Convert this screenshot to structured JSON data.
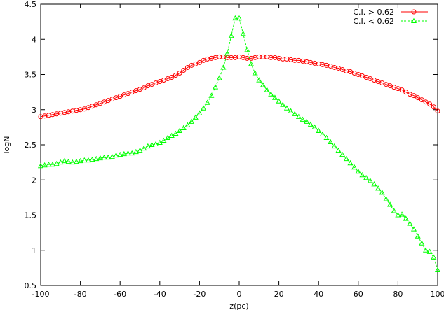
{
  "chart_data": {
    "type": "line",
    "xlabel": "z(pc)",
    "ylabel": "logN",
    "xlim": [
      -100,
      100
    ],
    "ylim": [
      0.5,
      4.5
    ],
    "xticks": [
      -100,
      -80,
      -60,
      -40,
      -20,
      0,
      20,
      40,
      60,
      80,
      100
    ],
    "yticks": [
      0.5,
      1,
      1.5,
      2,
      2.5,
      3,
      3.5,
      4,
      4.5
    ],
    "xtick_labels": [
      "-100",
      "-80",
      "-60",
      "-40",
      "-20",
      "0",
      "20",
      "40",
      "60",
      "80",
      "100"
    ],
    "ytick_labels": [
      "0.5",
      "1",
      "1.5",
      "2",
      "2.5",
      "3",
      "3.5",
      "4",
      "4.5"
    ],
    "grid": false,
    "legend": "top-right",
    "x": [
      -100,
      -98,
      -96,
      -94,
      -92,
      -90,
      -88,
      -86,
      -84,
      -82,
      -80,
      -78,
      -76,
      -74,
      -72,
      -70,
      -68,
      -66,
      -64,
      -62,
      -60,
      -58,
      -56,
      -54,
      -52,
      -50,
      -48,
      -46,
      -44,
      -42,
      -40,
      -38,
      -36,
      -34,
      -32,
      -30,
      -28,
      -26,
      -24,
      -22,
      -20,
      -18,
      -16,
      -14,
      -12,
      -10,
      -8,
      -6,
      -4,
      -2,
      0,
      2,
      4,
      6,
      8,
      10,
      12,
      14,
      16,
      18,
      20,
      22,
      24,
      26,
      28,
      30,
      32,
      34,
      36,
      38,
      40,
      42,
      44,
      46,
      48,
      50,
      52,
      54,
      56,
      58,
      60,
      62,
      64,
      66,
      68,
      70,
      72,
      74,
      76,
      78,
      80,
      82,
      84,
      86,
      88,
      90,
      92,
      94,
      96,
      98,
      100
    ],
    "series": [
      {
        "name": "C.I. > 0.62",
        "color": "#ff0000",
        "marker": "circle",
        "values": [
          2.9,
          2.91,
          2.92,
          2.93,
          2.94,
          2.95,
          2.96,
          2.97,
          2.98,
          2.99,
          3.0,
          3.01,
          3.03,
          3.05,
          3.07,
          3.09,
          3.11,
          3.13,
          3.15,
          3.17,
          3.19,
          3.21,
          3.23,
          3.25,
          3.27,
          3.29,
          3.31,
          3.34,
          3.36,
          3.38,
          3.4,
          3.42,
          3.44,
          3.46,
          3.49,
          3.52,
          3.56,
          3.6,
          3.63,
          3.65,
          3.67,
          3.7,
          3.72,
          3.73,
          3.74,
          3.75,
          3.75,
          3.74,
          3.74,
          3.74,
          3.75,
          3.74,
          3.73,
          3.73,
          3.74,
          3.75,
          3.75,
          3.75,
          3.74,
          3.74,
          3.73,
          3.72,
          3.72,
          3.71,
          3.7,
          3.7,
          3.69,
          3.68,
          3.67,
          3.66,
          3.65,
          3.64,
          3.63,
          3.62,
          3.6,
          3.59,
          3.57,
          3.55,
          3.54,
          3.52,
          3.5,
          3.48,
          3.46,
          3.44,
          3.42,
          3.4,
          3.38,
          3.36,
          3.34,
          3.32,
          3.3,
          3.28,
          3.25,
          3.22,
          3.2,
          3.17,
          3.14,
          3.11,
          3.08,
          3.04,
          2.98
        ]
      },
      {
        "name": "C.I. < 0.62",
        "color": "#00ff00",
        "marker": "triangle",
        "values": [
          2.2,
          2.21,
          2.22,
          2.22,
          2.23,
          2.25,
          2.27,
          2.26,
          2.25,
          2.26,
          2.27,
          2.28,
          2.28,
          2.29,
          2.3,
          2.31,
          2.32,
          2.32,
          2.33,
          2.35,
          2.36,
          2.37,
          2.38,
          2.38,
          2.4,
          2.42,
          2.45,
          2.48,
          2.5,
          2.51,
          2.53,
          2.56,
          2.6,
          2.63,
          2.66,
          2.7,
          2.74,
          2.78,
          2.83,
          2.89,
          2.95,
          3.02,
          3.1,
          3.2,
          3.32,
          3.45,
          3.6,
          3.8,
          4.05,
          4.3,
          4.3,
          4.08,
          3.85,
          3.65,
          3.52,
          3.42,
          3.35,
          3.28,
          3.22,
          3.17,
          3.12,
          3.07,
          3.02,
          2.98,
          2.94,
          2.9,
          2.86,
          2.83,
          2.79,
          2.75,
          2.7,
          2.65,
          2.6,
          2.54,
          2.48,
          2.42,
          2.36,
          2.3,
          2.24,
          2.18,
          2.12,
          2.07,
          2.03,
          1.99,
          1.94,
          1.88,
          1.82,
          1.73,
          1.65,
          1.56,
          1.5,
          1.51,
          1.45,
          1.38,
          1.3,
          1.2,
          1.1,
          1.0,
          0.98,
          0.9,
          0.72
        ]
      }
    ]
  }
}
